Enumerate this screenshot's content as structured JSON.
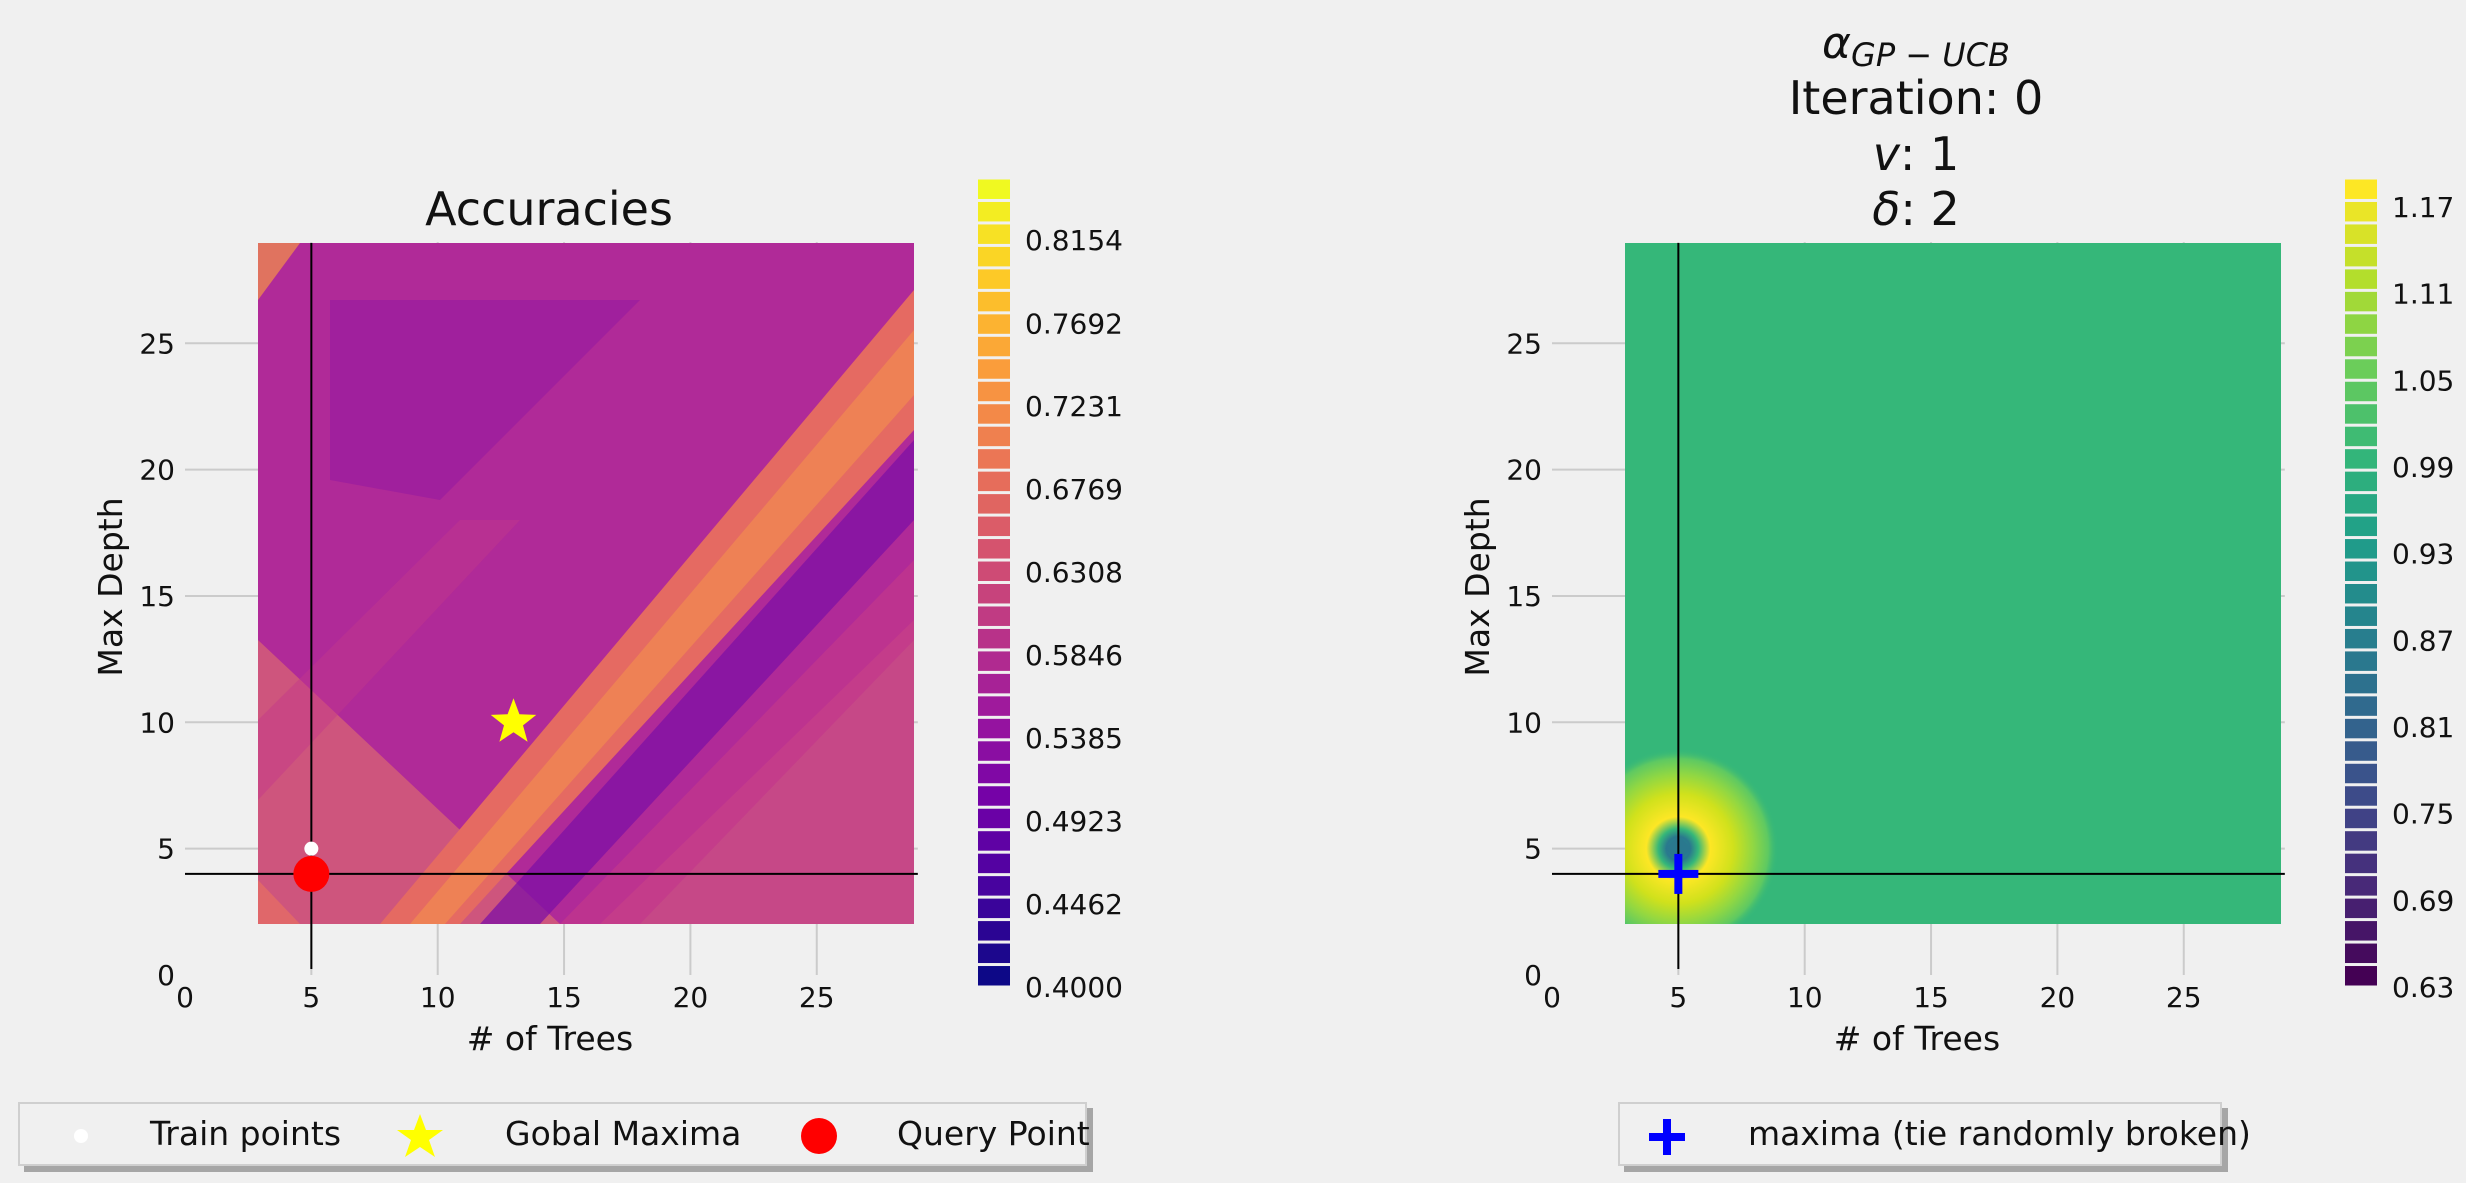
{
  "colors": {
    "background": "#f0f0f0",
    "grid": "#cbcbcb",
    "crosshair": "#000000",
    "train_point": "#ffffff",
    "global_maxima": "#ffff00",
    "query_point": "#ff0000",
    "maxima_marker": "#0000ff",
    "ucb_field": "#35b779"
  },
  "chart_data": [
    {
      "type": "heatmap",
      "title": "Accuracies",
      "xlabel": "# of Trees",
      "ylabel": "Max Depth",
      "xlim": [
        0,
        29
      ],
      "ylim": [
        0,
        29
      ],
      "data_extent": {
        "x": [
          3,
          29
        ],
        "y": [
          2,
          29
        ]
      },
      "xticks": [
        0,
        5,
        10,
        15,
        20,
        25
      ],
      "yticks": [
        0,
        5,
        10,
        15,
        20,
        25
      ],
      "grid": true,
      "colormap": "plasma",
      "colorbar_range": [
        0.4,
        0.85
      ],
      "colorbar_ticks": [
        "0.4000",
        "0.4462",
        "0.4923",
        "0.5385",
        "0.5846",
        "0.6308",
        "0.6769",
        "0.7231",
        "0.7692",
        "0.8154"
      ],
      "crosshair": {
        "x": 5,
        "y": 4
      },
      "train_points": [
        {
          "x": 5,
          "y": 5
        }
      ],
      "global_maxima": {
        "x": 13,
        "y": 10
      },
      "query_point": {
        "x": 5,
        "y": 4
      }
    },
    {
      "type": "heatmap",
      "title_lines": [
        "α GP − UCB",
        "Iteration: 0",
        "v: 1",
        "δ: 2"
      ],
      "xlabel": "# of Trees",
      "ylabel": "Max Depth",
      "xlim": [
        0,
        29
      ],
      "ylim": [
        0,
        29
      ],
      "data_extent": {
        "x": [
          3,
          29
        ],
        "y": [
          2,
          29
        ]
      },
      "xticks": [
        0,
        5,
        10,
        15,
        20,
        25
      ],
      "yticks": [
        0,
        5,
        10,
        15,
        20,
        25
      ],
      "grid": true,
      "colormap": "viridis",
      "colorbar_range": [
        0.63,
        1.19
      ],
      "colorbar_ticks": [
        "0.63",
        "0.69",
        "0.75",
        "0.81",
        "0.87",
        "0.93",
        "0.99",
        "1.05",
        "1.11",
        "1.17"
      ],
      "field_value": 1.0,
      "peak": {
        "x": 5,
        "y": 5
      },
      "crosshair": {
        "x": 5,
        "y": 4
      },
      "maxima": {
        "x": 5,
        "y": 4
      }
    }
  ],
  "titles": {
    "left": "Accuracies",
    "right_alpha": "α",
    "right_subscript": "GP − UCB",
    "right_iteration": "Iteration: 0",
    "right_nu_symbol": "v",
    "right_nu_value": ": 1",
    "right_delta_symbol": "δ",
    "right_delta_value": ": 2"
  },
  "legend_left": {
    "items": [
      {
        "label": "Train points",
        "icon": "white-dot-icon"
      },
      {
        "label": "Gobal Maxima",
        "icon": "yellow-star-icon"
      },
      {
        "label": "Query Point",
        "icon": "red-circle-icon"
      }
    ]
  },
  "legend_right": {
    "items": [
      {
        "label": "maxima (tie randomly broken)",
        "icon": "blue-plus-icon"
      }
    ]
  }
}
